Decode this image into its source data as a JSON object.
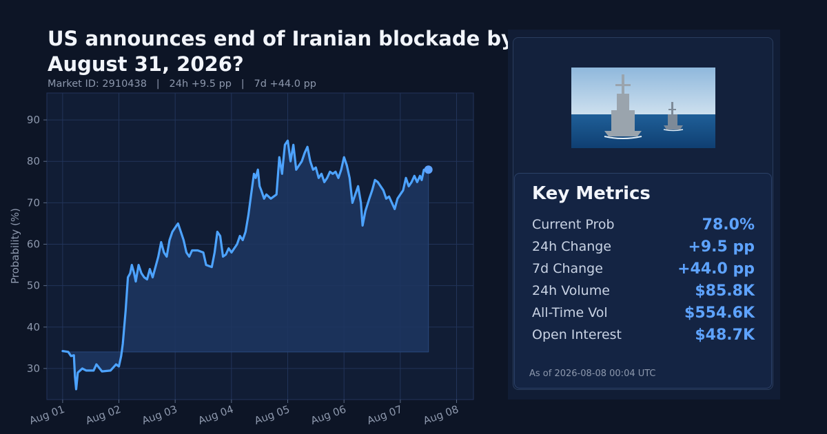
{
  "header": {
    "title": "US announces end of Iranian blockade by August 31, 2026?",
    "subtitle": "Market ID: 2910438   |   24h +9.5 pp   |   7d +44.0 pp"
  },
  "chart_data": {
    "type": "area",
    "ylabel": "Probability (%)",
    "xlabel": "",
    "ylim": [
      22.5,
      96.5
    ],
    "yticks": [
      30,
      40,
      50,
      60,
      70,
      80,
      90
    ],
    "xlim_days": [
      -0.28,
      7.3
    ],
    "xticks": [
      "Aug 01",
      "Aug 02",
      "Aug 03",
      "Aug 04",
      "Aug 05",
      "Aug 06",
      "Aug 07",
      "Aug 08"
    ],
    "grid": true,
    "baseline": 34,
    "line_color": "#4da3ff",
    "fill_color": "#1d3660",
    "series": [
      {
        "values": [
          [
            0.0,
            34.2
          ],
          [
            0.1,
            34.0
          ],
          [
            0.15,
            33.0
          ],
          [
            0.2,
            33.2
          ],
          [
            0.22,
            28.0
          ],
          [
            0.24,
            25.0
          ],
          [
            0.27,
            29.0
          ],
          [
            0.35,
            30.0
          ],
          [
            0.42,
            29.5
          ],
          [
            0.55,
            29.5
          ],
          [
            0.6,
            31.0
          ],
          [
            0.7,
            29.3
          ],
          [
            0.85,
            29.5
          ],
          [
            0.95,
            31.0
          ],
          [
            1.0,
            30.5
          ],
          [
            1.04,
            33.0
          ],
          [
            1.07,
            36.0
          ],
          [
            1.12,
            44.0
          ],
          [
            1.16,
            52.0
          ],
          [
            1.2,
            53.0
          ],
          [
            1.23,
            55.0
          ],
          [
            1.27,
            53.0
          ],
          [
            1.3,
            51.0
          ],
          [
            1.35,
            55.0
          ],
          [
            1.4,
            53.0
          ],
          [
            1.45,
            52.0
          ],
          [
            1.5,
            51.5
          ],
          [
            1.55,
            54.0
          ],
          [
            1.6,
            52.0
          ],
          [
            1.65,
            54.5
          ],
          [
            1.7,
            57.0
          ],
          [
            1.75,
            60.5
          ],
          [
            1.8,
            58.0
          ],
          [
            1.85,
            57.0
          ],
          [
            1.9,
            61.0
          ],
          [
            1.95,
            63.0
          ],
          [
            2.0,
            64.0
          ],
          [
            2.05,
            65.0
          ],
          [
            2.1,
            63.0
          ],
          [
            2.15,
            61.0
          ],
          [
            2.2,
            58.0
          ],
          [
            2.25,
            57.0
          ],
          [
            2.3,
            58.5
          ],
          [
            2.4,
            58.5
          ],
          [
            2.5,
            58.0
          ],
          [
            2.55,
            55.0
          ],
          [
            2.65,
            54.5
          ],
          [
            2.7,
            58.0
          ],
          [
            2.75,
            63.0
          ],
          [
            2.8,
            62.0
          ],
          [
            2.85,
            57.0
          ],
          [
            2.9,
            57.5
          ],
          [
            2.95,
            59.0
          ],
          [
            3.0,
            58.0
          ],
          [
            3.05,
            59.0
          ],
          [
            3.1,
            60.0
          ],
          [
            3.15,
            62.0
          ],
          [
            3.2,
            61.0
          ],
          [
            3.25,
            63.0
          ],
          [
            3.3,
            67.0
          ],
          [
            3.35,
            72.0
          ],
          [
            3.4,
            77.0
          ],
          [
            3.43,
            76.0
          ],
          [
            3.47,
            78.0
          ],
          [
            3.5,
            74.0
          ],
          [
            3.53,
            73.0
          ],
          [
            3.58,
            71.0
          ],
          [
            3.62,
            72.0
          ],
          [
            3.7,
            71.0
          ],
          [
            3.8,
            72.0
          ],
          [
            3.85,
            81.0
          ],
          [
            3.9,
            77.0
          ],
          [
            3.92,
            80.0
          ],
          [
            3.95,
            84.0
          ],
          [
            4.0,
            85.0
          ],
          [
            4.05,
            80.0
          ],
          [
            4.1,
            84.0
          ],
          [
            4.15,
            78.0
          ],
          [
            4.2,
            79.0
          ],
          [
            4.25,
            80.0
          ],
          [
            4.3,
            82.0
          ],
          [
            4.35,
            83.5
          ],
          [
            4.4,
            80.0
          ],
          [
            4.45,
            78.0
          ],
          [
            4.5,
            78.5
          ],
          [
            4.55,
            76.0
          ],
          [
            4.6,
            77.0
          ],
          [
            4.65,
            75.0
          ],
          [
            4.7,
            76.0
          ],
          [
            4.75,
            77.5
          ],
          [
            4.8,
            77.0
          ],
          [
            4.85,
            77.5
          ],
          [
            4.9,
            76.0
          ],
          [
            4.95,
            78.0
          ],
          [
            5.0,
            81.0
          ],
          [
            5.05,
            79.0
          ],
          [
            5.1,
            76.0
          ],
          [
            5.15,
            70.0
          ],
          [
            5.2,
            72.0
          ],
          [
            5.25,
            74.0
          ],
          [
            5.3,
            70.0
          ],
          [
            5.33,
            64.5
          ],
          [
            5.38,
            68.0
          ],
          [
            5.45,
            71.0
          ],
          [
            5.5,
            73.0
          ],
          [
            5.55,
            75.5
          ],
          [
            5.6,
            75.0
          ],
          [
            5.7,
            73.0
          ],
          [
            5.75,
            71.0
          ],
          [
            5.8,
            71.5
          ],
          [
            5.85,
            70.0
          ],
          [
            5.9,
            68.5
          ],
          [
            5.95,
            71.0
          ],
          [
            6.0,
            72.0
          ],
          [
            6.05,
            73.0
          ],
          [
            6.1,
            76.0
          ],
          [
            6.15,
            74.0
          ],
          [
            6.2,
            75.0
          ],
          [
            6.25,
            76.5
          ],
          [
            6.3,
            75.0
          ],
          [
            6.35,
            76.5
          ],
          [
            6.38,
            75.5
          ],
          [
            6.42,
            78.0
          ],
          [
            6.46,
            78.0
          ],
          [
            6.5,
            78.0
          ]
        ]
      }
    ]
  },
  "panel": {
    "image_alt": "Naval destroyers at sea",
    "metrics_title": "Key Metrics",
    "metrics": [
      {
        "label": "Current Prob",
        "value": "78.0%"
      },
      {
        "label": "24h Change",
        "value": "+9.5 pp"
      },
      {
        "label": "7d Change",
        "value": "+44.0 pp"
      },
      {
        "label": "24h Volume",
        "value": "$85.8K"
      },
      {
        "label": "All-Time Vol",
        "value": "$554.6K"
      },
      {
        "label": "Open Interest",
        "value": "$48.7K"
      }
    ],
    "as_of": "As of 2026-08-08 00:04 UTC"
  },
  "colors": {
    "background": "#0d1526",
    "accent": "#5ea3ff",
    "line": "#4da3ff"
  }
}
